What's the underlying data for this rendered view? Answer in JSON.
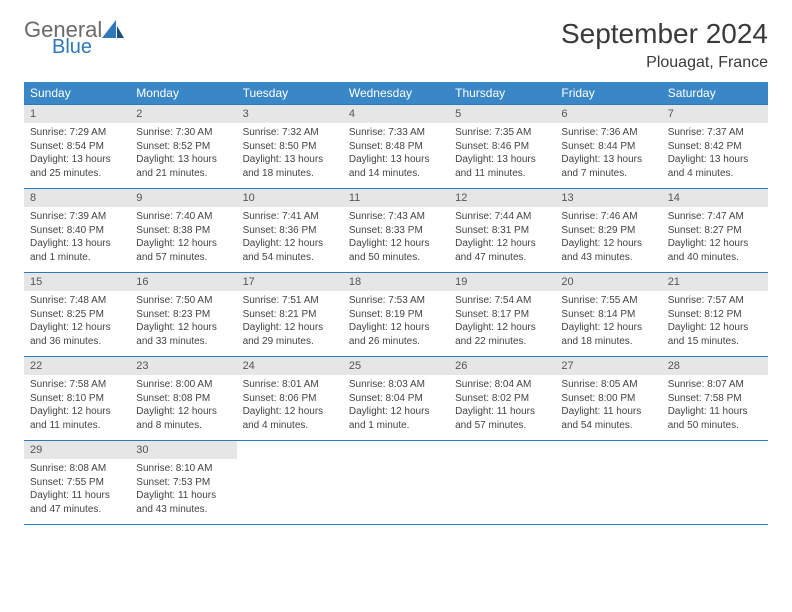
{
  "brand": {
    "general": "General",
    "blue": "Blue"
  },
  "title": "September 2024",
  "location": "Plouagat, France",
  "colors": {
    "header_bg": "#3a87c8",
    "header_text": "#ffffff",
    "daynum_bg": "#e6e6e6",
    "border": "#2f78b9",
    "logo_gray": "#6a6a6a",
    "logo_blue": "#2f78b9"
  },
  "weekdays": [
    "Sunday",
    "Monday",
    "Tuesday",
    "Wednesday",
    "Thursday",
    "Friday",
    "Saturday"
  ],
  "weeks": [
    [
      {
        "n": "1",
        "sunrise": "7:29 AM",
        "sunset": "8:54 PM",
        "daylight": "13 hours and 25 minutes."
      },
      {
        "n": "2",
        "sunrise": "7:30 AM",
        "sunset": "8:52 PM",
        "daylight": "13 hours and 21 minutes."
      },
      {
        "n": "3",
        "sunrise": "7:32 AM",
        "sunset": "8:50 PM",
        "daylight": "13 hours and 18 minutes."
      },
      {
        "n": "4",
        "sunrise": "7:33 AM",
        "sunset": "8:48 PM",
        "daylight": "13 hours and 14 minutes."
      },
      {
        "n": "5",
        "sunrise": "7:35 AM",
        "sunset": "8:46 PM",
        "daylight": "13 hours and 11 minutes."
      },
      {
        "n": "6",
        "sunrise": "7:36 AM",
        "sunset": "8:44 PM",
        "daylight": "13 hours and 7 minutes."
      },
      {
        "n": "7",
        "sunrise": "7:37 AM",
        "sunset": "8:42 PM",
        "daylight": "13 hours and 4 minutes."
      }
    ],
    [
      {
        "n": "8",
        "sunrise": "7:39 AM",
        "sunset": "8:40 PM",
        "daylight": "13 hours and 1 minute."
      },
      {
        "n": "9",
        "sunrise": "7:40 AM",
        "sunset": "8:38 PM",
        "daylight": "12 hours and 57 minutes."
      },
      {
        "n": "10",
        "sunrise": "7:41 AM",
        "sunset": "8:36 PM",
        "daylight": "12 hours and 54 minutes."
      },
      {
        "n": "11",
        "sunrise": "7:43 AM",
        "sunset": "8:33 PM",
        "daylight": "12 hours and 50 minutes."
      },
      {
        "n": "12",
        "sunrise": "7:44 AM",
        "sunset": "8:31 PM",
        "daylight": "12 hours and 47 minutes."
      },
      {
        "n": "13",
        "sunrise": "7:46 AM",
        "sunset": "8:29 PM",
        "daylight": "12 hours and 43 minutes."
      },
      {
        "n": "14",
        "sunrise": "7:47 AM",
        "sunset": "8:27 PM",
        "daylight": "12 hours and 40 minutes."
      }
    ],
    [
      {
        "n": "15",
        "sunrise": "7:48 AM",
        "sunset": "8:25 PM",
        "daylight": "12 hours and 36 minutes."
      },
      {
        "n": "16",
        "sunrise": "7:50 AM",
        "sunset": "8:23 PM",
        "daylight": "12 hours and 33 minutes."
      },
      {
        "n": "17",
        "sunrise": "7:51 AM",
        "sunset": "8:21 PM",
        "daylight": "12 hours and 29 minutes."
      },
      {
        "n": "18",
        "sunrise": "7:53 AM",
        "sunset": "8:19 PM",
        "daylight": "12 hours and 26 minutes."
      },
      {
        "n": "19",
        "sunrise": "7:54 AM",
        "sunset": "8:17 PM",
        "daylight": "12 hours and 22 minutes."
      },
      {
        "n": "20",
        "sunrise": "7:55 AM",
        "sunset": "8:14 PM",
        "daylight": "12 hours and 18 minutes."
      },
      {
        "n": "21",
        "sunrise": "7:57 AM",
        "sunset": "8:12 PM",
        "daylight": "12 hours and 15 minutes."
      }
    ],
    [
      {
        "n": "22",
        "sunrise": "7:58 AM",
        "sunset": "8:10 PM",
        "daylight": "12 hours and 11 minutes."
      },
      {
        "n": "23",
        "sunrise": "8:00 AM",
        "sunset": "8:08 PM",
        "daylight": "12 hours and 8 minutes."
      },
      {
        "n": "24",
        "sunrise": "8:01 AM",
        "sunset": "8:06 PM",
        "daylight": "12 hours and 4 minutes."
      },
      {
        "n": "25",
        "sunrise": "8:03 AM",
        "sunset": "8:04 PM",
        "daylight": "12 hours and 1 minute."
      },
      {
        "n": "26",
        "sunrise": "8:04 AM",
        "sunset": "8:02 PM",
        "daylight": "11 hours and 57 minutes."
      },
      {
        "n": "27",
        "sunrise": "8:05 AM",
        "sunset": "8:00 PM",
        "daylight": "11 hours and 54 minutes."
      },
      {
        "n": "28",
        "sunrise": "8:07 AM",
        "sunset": "7:58 PM",
        "daylight": "11 hours and 50 minutes."
      }
    ],
    [
      {
        "n": "29",
        "sunrise": "8:08 AM",
        "sunset": "7:55 PM",
        "daylight": "11 hours and 47 minutes."
      },
      {
        "n": "30",
        "sunrise": "8:10 AM",
        "sunset": "7:53 PM",
        "daylight": "11 hours and 43 minutes."
      },
      null,
      null,
      null,
      null,
      null
    ]
  ],
  "labels": {
    "sunrise": "Sunrise:",
    "sunset": "Sunset:",
    "daylight": "Daylight:"
  }
}
